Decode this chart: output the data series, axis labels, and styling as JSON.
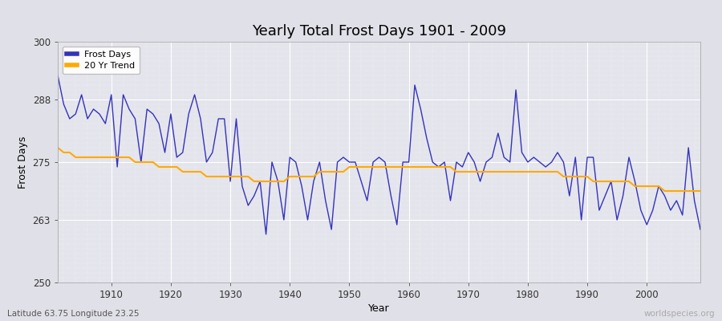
{
  "title": "Yearly Total Frost Days 1901 - 2009",
  "xlabel": "Year",
  "ylabel": "Frost Days",
  "bottom_left_label": "Latitude 63.75 Longitude 23.25",
  "bottom_right_label": "worldspecies.org",
  "ylim": [
    250,
    300
  ],
  "yticks": [
    250,
    263,
    275,
    288,
    300
  ],
  "xticks": [
    1910,
    1920,
    1930,
    1940,
    1950,
    1960,
    1970,
    1980,
    1990,
    2000
  ],
  "xlim": [
    1901,
    2009
  ],
  "line_color": "#3333bb",
  "trend_color": "#ffaa00",
  "fig_bg_color": "#e0e0e8",
  "plot_bg_color": "#e4e4ec",
  "grid_color": "#ffffff",
  "legend_labels": [
    "Frost Days",
    "20 Yr Trend"
  ],
  "years": [
    1901,
    1902,
    1903,
    1904,
    1905,
    1906,
    1907,
    1908,
    1909,
    1910,
    1911,
    1912,
    1913,
    1914,
    1915,
    1916,
    1917,
    1918,
    1919,
    1920,
    1921,
    1922,
    1923,
    1924,
    1925,
    1926,
    1927,
    1928,
    1929,
    1930,
    1931,
    1932,
    1933,
    1934,
    1935,
    1936,
    1937,
    1938,
    1939,
    1940,
    1941,
    1942,
    1943,
    1944,
    1945,
    1946,
    1947,
    1948,
    1949,
    1950,
    1951,
    1952,
    1953,
    1954,
    1955,
    1956,
    1957,
    1958,
    1959,
    1960,
    1961,
    1962,
    1963,
    1964,
    1965,
    1966,
    1967,
    1968,
    1969,
    1970,
    1971,
    1972,
    1973,
    1974,
    1975,
    1976,
    1977,
    1978,
    1979,
    1980,
    1981,
    1982,
    1983,
    1984,
    1985,
    1986,
    1987,
    1988,
    1989,
    1990,
    1991,
    1992,
    1993,
    1994,
    1995,
    1996,
    1997,
    1998,
    1999,
    2000,
    2001,
    2002,
    2003,
    2004,
    2005,
    2006,
    2007,
    2008,
    2009
  ],
  "frost_days": [
    293,
    287,
    284,
    285,
    289,
    284,
    286,
    285,
    283,
    289,
    274,
    289,
    286,
    284,
    275,
    286,
    285,
    283,
    277,
    285,
    276,
    277,
    285,
    289,
    284,
    275,
    277,
    284,
    284,
    271,
    284,
    270,
    266,
    268,
    271,
    260,
    275,
    271,
    263,
    276,
    275,
    270,
    263,
    271,
    275,
    267,
    261,
    275,
    276,
    275,
    275,
    271,
    267,
    275,
    276,
    275,
    268,
    262,
    275,
    275,
    291,
    286,
    280,
    275,
    274,
    275,
    267,
    275,
    274,
    277,
    275,
    271,
    275,
    276,
    281,
    276,
    275,
    290,
    277,
    275,
    276,
    275,
    274,
    275,
    277,
    275,
    268,
    276,
    263,
    276,
    276,
    265,
    268,
    271,
    263,
    268,
    276,
    271,
    265,
    262,
    265,
    270,
    268,
    265,
    267,
    264,
    278,
    267,
    261
  ],
  "trend": [
    278,
    277,
    277,
    276,
    276,
    276,
    276,
    276,
    276,
    276,
    276,
    276,
    276,
    275,
    275,
    275,
    275,
    274,
    274,
    274,
    274,
    273,
    273,
    273,
    273,
    272,
    272,
    272,
    272,
    272,
    272,
    272,
    272,
    271,
    271,
    271,
    271,
    271,
    271,
    272,
    272,
    272,
    272,
    272,
    273,
    273,
    273,
    273,
    273,
    274,
    274,
    274,
    274,
    274,
    274,
    274,
    274,
    274,
    274,
    274,
    274,
    274,
    274,
    274,
    274,
    274,
    274,
    273,
    273,
    273,
    273,
    273,
    273,
    273,
    273,
    273,
    273,
    273,
    273,
    273,
    273,
    273,
    273,
    273,
    273,
    272,
    272,
    272,
    272,
    272,
    271,
    271,
    271,
    271,
    271,
    271,
    271,
    270,
    270,
    270,
    270,
    270,
    269,
    269,
    269,
    269,
    269,
    269,
    269
  ]
}
